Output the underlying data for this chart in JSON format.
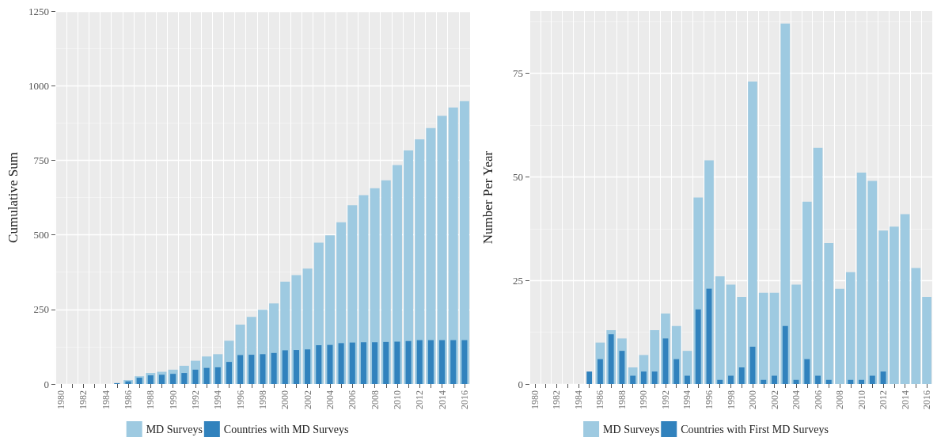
{
  "chart_data": [
    {
      "type": "bar",
      "ylabel": "Cumulative Sum",
      "categories": [
        "1980",
        null,
        "1982",
        null,
        "1984",
        null,
        "1986",
        null,
        "1988",
        null,
        "1990",
        null,
        "1992",
        null,
        "1994",
        null,
        "1996",
        null,
        "1998",
        null,
        "2000",
        null,
        "2002",
        null,
        "2004",
        null,
        "2006",
        null,
        "2008",
        null,
        "2010",
        null,
        "2012",
        null,
        "2014",
        null,
        "2016"
      ],
      "series": [
        {
          "name": "MD Surveys",
          "color": "#9ecae1",
          "values": [
            0,
            0,
            0,
            0,
            0,
            null,
            13,
            26,
            37,
            41,
            48,
            61,
            78,
            92,
            100,
            145,
            199,
            225,
            249,
            270,
            343,
            365,
            387,
            474,
            498,
            542,
            599,
            633,
            656,
            683,
            734,
            783,
            820,
            858,
            899,
            927,
            948
          ]
        },
        {
          "name": "Countries with MD Surveys",
          "color": "#3182bd",
          "values": [
            0,
            0,
            0,
            0,
            0,
            3,
            9,
            21,
            29,
            31,
            34,
            37,
            48,
            54,
            56,
            74,
            97,
            98,
            100,
            104,
            113,
            114,
            116,
            130,
            131,
            137,
            139,
            140,
            140,
            141,
            142,
            144,
            147,
            147,
            147,
            147,
            147
          ]
        }
      ],
      "ylim": [
        0,
        1250
      ],
      "yticks": [
        0,
        250,
        500,
        750,
        1000,
        1250
      ],
      "grid": true,
      "legend": "bottom"
    },
    {
      "type": "bar",
      "ylabel": "Number Per Year",
      "categories": [
        "1980",
        null,
        "1982",
        null,
        "1984",
        null,
        "1986",
        null,
        "1988",
        null,
        "1990",
        null,
        "1992",
        null,
        "1994",
        null,
        "1996",
        null,
        "1998",
        null,
        "2000",
        null,
        "2002",
        null,
        "2004",
        null,
        "2006",
        null,
        "2008",
        null,
        "2010",
        null,
        "2012",
        null,
        "2014",
        null,
        "2016"
      ],
      "series": [
        {
          "name": "MD Surveys",
          "color": "#9ecae1",
          "values": [
            0,
            0,
            0,
            0,
            0,
            null,
            10,
            13,
            11,
            4,
            7,
            13,
            17,
            14,
            8,
            45,
            54,
            26,
            24,
            21,
            73,
            22,
            22,
            87,
            24,
            44,
            57,
            34,
            23,
            27,
            51,
            49,
            37,
            38,
            41,
            28,
            21
          ]
        },
        {
          "name": "Countries with First MD Surveys",
          "color": "#3182bd",
          "values": [
            0,
            0,
            0,
            0,
            0,
            3,
            6,
            12,
            8,
            2,
            3,
            3,
            11,
            6,
            2,
            18,
            23,
            1,
            2,
            4,
            9,
            1,
            2,
            14,
            1,
            6,
            2,
            1,
            0,
            1,
            1,
            2,
            3,
            0,
            0,
            0,
            0
          ]
        }
      ],
      "ylim": [
        0,
        90
      ],
      "yticks": [
        0,
        25,
        50,
        75
      ],
      "grid": true,
      "legend": "bottom"
    }
  ]
}
